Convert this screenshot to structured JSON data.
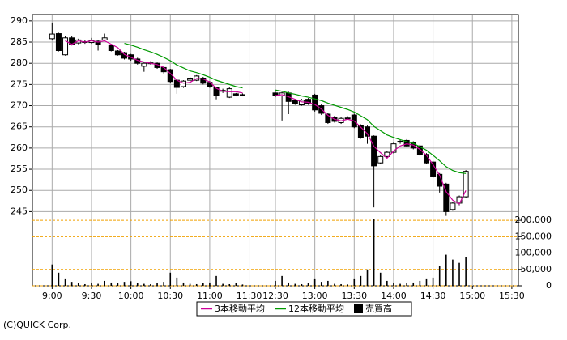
{
  "chart_data": {
    "type": "candlestick",
    "copyright": "(C)QUICK Corp.",
    "grid": true,
    "legend": "bottom",
    "x": [
      0,
      1,
      2,
      3,
      4,
      5,
      6,
      7,
      8,
      9,
      10,
      11,
      12,
      13,
      14,
      15,
      16,
      17,
      18,
      19,
      20,
      21,
      22,
      23,
      24,
      25,
      26,
      27,
      28,
      29,
      30,
      31,
      32,
      33,
      34,
      35,
      36,
      37,
      38,
      39,
      40,
      41,
      42,
      43,
      44,
      45,
      46,
      47,
      48,
      49,
      50,
      51,
      52,
      53,
      54,
      55,
      56,
      57,
      58,
      59,
      60,
      61,
      62,
      63
    ],
    "xlim": [
      -3,
      71
    ],
    "xticks": [
      {
        "value": 0,
        "label": "9:00"
      },
      {
        "value": 6,
        "label": "9:30"
      },
      {
        "value": 12,
        "label": "10:00"
      },
      {
        "value": 18,
        "label": "10:30"
      },
      {
        "value": 24,
        "label": "11:00"
      },
      {
        "value": 30,
        "label": "11:30"
      },
      {
        "value": 34,
        "label": "12:30"
      },
      {
        "value": 40,
        "label": "13:00"
      },
      {
        "value": 46,
        "label": "13:30"
      },
      {
        "value": 52,
        "label": "14:00"
      },
      {
        "value": 58,
        "label": "14:30"
      },
      {
        "value": 64,
        "label": "15:00"
      },
      {
        "value": 70,
        "label": "15:30"
      }
    ],
    "ylim": [
      227.5,
      291.5
    ],
    "yticks": [
      245,
      250,
      255,
      260,
      265,
      270,
      275,
      280,
      285,
      290
    ],
    "up_color": "#ffffff",
    "down_color": "#000000",
    "open": [
      285.8,
      287,
      282,
      286,
      284.8,
      285.1,
      284.9,
      285.2,
      285.5,
      284.3,
      282.9,
      282.5,
      282,
      281,
      279.3,
      280,
      280,
      279,
      278.5,
      276,
      274.5,
      276,
      276,
      276.5,
      275.5,
      274.3,
      273.6,
      272,
      272.8,
      272.6,
      null,
      null,
      null,
      null,
      273,
      272.3,
      273,
      271.3,
      270.2,
      271.5,
      272.5,
      270,
      268,
      267.3,
      266,
      267,
      267.8,
      265.3,
      265,
      262.8,
      256.5,
      258,
      259,
      261.4,
      261.8,
      261.3,
      260.5,
      258.5,
      256.7,
      253.8,
      251.5,
      245.5,
      247,
      248.5
    ],
    "high": [
      289.6,
      287.2,
      286.5,
      286.5,
      285.8,
      285.4,
      286,
      285.5,
      287,
      284.5,
      283.1,
      282.7,
      282.2,
      281.3,
      280.3,
      280.5,
      280.2,
      279.3,
      278.7,
      276.2,
      276,
      276.8,
      277.2,
      276.8,
      275.8,
      274.5,
      274,
      274.3,
      273,
      272.9,
      null,
      null,
      null,
      null,
      273.3,
      273.2,
      273.3,
      271.6,
      271.6,
      271.8,
      272.8,
      270.3,
      268.3,
      267.6,
      267.3,
      267.5,
      268.1,
      265.6,
      265.3,
      263,
      258.3,
      259.3,
      261.3,
      262,
      262.1,
      261.6,
      260.8,
      258.8,
      257,
      254.1,
      251.8,
      247.3,
      248.8,
      254.8
    ],
    "low": [
      285.5,
      282.8,
      281.8,
      284.2,
      284.5,
      284.6,
      284.6,
      283,
      285.2,
      282.8,
      281.8,
      280.9,
      280.6,
      279.7,
      278,
      279.7,
      278.7,
      277.6,
      275.4,
      272.8,
      274.2,
      275.7,
      275.8,
      275,
      274.2,
      271.5,
      273,
      271.8,
      272.2,
      272.2,
      null,
      null,
      null,
      null,
      272,
      266.5,
      268,
      270.2,
      270,
      270.2,
      268.6,
      267.8,
      265.7,
      266,
      265.7,
      266.7,
      264.7,
      262.2,
      261,
      246,
      256.2,
      257.7,
      258.7,
      261,
      260.2,
      259.7,
      258.2,
      256.2,
      252.9,
      249.5,
      244,
      245.2,
      246.5,
      248.2
    ],
    "close": [
      286.9,
      283,
      286,
      284.5,
      285.5,
      285,
      285.4,
      284.5,
      286,
      283,
      282,
      281.2,
      281,
      280,
      280,
      280.1,
      279,
      278,
      275.7,
      274.3,
      275.8,
      276.5,
      277,
      275.3,
      274.5,
      272.4,
      273.4,
      274,
      272.5,
      272.5,
      null,
      null,
      null,
      null,
      272.3,
      273,
      271,
      270.5,
      271.3,
      270.5,
      269,
      268.2,
      266,
      266.3,
      267,
      267.1,
      265,
      262.5,
      262.8,
      255.8,
      258,
      259,
      261,
      261.6,
      260.5,
      260,
      258.5,
      256.5,
      253.2,
      251,
      245,
      247,
      248.5,
      254.5
    ],
    "series": [
      {
        "name": "3本移動平均",
        "color": "#cc0099",
        "values": [
          null,
          null,
          285.3,
          284.5,
          285.3,
          285,
          285.3,
          285,
          285.3,
          284.5,
          283.7,
          282.1,
          281.4,
          280.7,
          280.3,
          280,
          279.7,
          279,
          277.6,
          276,
          275.3,
          275.5,
          276.4,
          276.3,
          275.6,
          274.1,
          273.4,
          273.3,
          273.3,
          273,
          null,
          null,
          null,
          null,
          272.4,
          272.6,
          272.1,
          271.5,
          270.9,
          270.8,
          270.3,
          269.2,
          267.7,
          266.8,
          266.4,
          266.8,
          266.4,
          264.9,
          263.4,
          260.4,
          258.9,
          257.6,
          259.3,
          260.5,
          261,
          260.7,
          259.7,
          258.3,
          256.1,
          253.6,
          249.7,
          247.7,
          246.8,
          250
        ]
      },
      {
        "name": "12本移動平均",
        "color": "#009900",
        "values": [
          null,
          null,
          null,
          null,
          null,
          null,
          null,
          null,
          null,
          null,
          null,
          284.7,
          284.3,
          283.8,
          283.2,
          282.7,
          282.1,
          281.4,
          280.6,
          279.6,
          278.9,
          278.2,
          277.8,
          277.3,
          276.7,
          276,
          275.5,
          275,
          274.5,
          274.2,
          null,
          null,
          null,
          null,
          273.7,
          273.4,
          273,
          272.7,
          272.3,
          272,
          271.6,
          271.2,
          270.6,
          270.1,
          269.6,
          269.1,
          268.5,
          267.6,
          266.7,
          265.1,
          264.1,
          263.1,
          262.5,
          262,
          261.5,
          261.1,
          260.3,
          259.5,
          258.3,
          257,
          255.6,
          254.7,
          254.2,
          254
        ]
      }
    ],
    "volume": {
      "name": "売買高",
      "color": "#000000",
      "ylim": [
        0,
        220000
      ],
      "yticks": [
        0,
        {
          "value": 50000,
          "label": "50,000"
        },
        {
          "value": 100000,
          "label": "100,000"
        },
        {
          "value": 150000,
          "label": "150,000"
        },
        {
          "value": 200000,
          "label": "200,000"
        }
      ],
      "grid_color": "#f0a000",
      "values": [
        65000,
        40000,
        20000,
        12000,
        8000,
        5000,
        10000,
        6000,
        15000,
        10000,
        8000,
        12000,
        14000,
        8000,
        6000,
        5000,
        8000,
        12000,
        40000,
        25000,
        10000,
        6000,
        5000,
        8000,
        10000,
        30000,
        6000,
        5000,
        8000,
        4000,
        null,
        null,
        null,
        null,
        15000,
        30000,
        10000,
        6000,
        5000,
        8000,
        20000,
        12000,
        15000,
        6000,
        5000,
        4000,
        20000,
        30000,
        50000,
        205000,
        40000,
        15000,
        10000,
        6000,
        8000,
        10000,
        15000,
        20000,
        25000,
        60000,
        95000,
        80000,
        70000,
        88000
      ]
    }
  }
}
